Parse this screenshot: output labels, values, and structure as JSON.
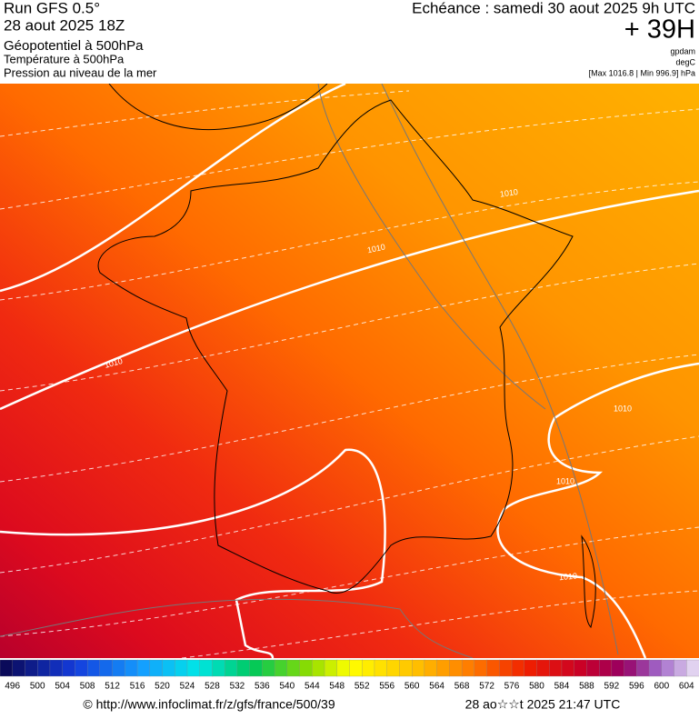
{
  "header": {
    "run": "Run GFS 0.5°",
    "date": "28 aout 2025 18Z",
    "field1": "Géopotentiel à 500hPa",
    "field2": "Température à 500hPa",
    "field3": "Pression au niveau de la mer",
    "valid": "Echéance : samedi 30 aout 2025 9h UTC",
    "lead": "+ 39H",
    "unit1": "gpdam",
    "unit2": "degC",
    "pressure_range": "[Max 1016.8 | Min 996.9] hPa"
  },
  "map": {
    "isobar_labels": [
      "1010",
      "1010",
      "1010",
      "1010",
      "1010",
      "1010"
    ]
  },
  "legend": {
    "labels": [
      496,
      500,
      504,
      508,
      512,
      516,
      520,
      524,
      528,
      532,
      536,
      540,
      544,
      548,
      552,
      556,
      560,
      564,
      568,
      572,
      576,
      580,
      584,
      588,
      592,
      596,
      600,
      604
    ]
  },
  "footer": {
    "url": "© http://www.infoclimat.fr/z/gfs/france/500/39",
    "timestamp": "28 ao☆☆t 2025 21:47 UTC"
  }
}
